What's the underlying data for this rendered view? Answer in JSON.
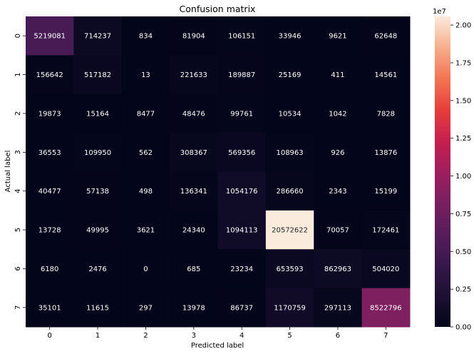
{
  "chart_data": {
    "type": "heatmap",
    "title": "Confusion matrix",
    "xlabel": "Predicted label",
    "ylabel": "Actual label",
    "x_categories": [
      "0",
      "1",
      "2",
      "3",
      "4",
      "5",
      "6",
      "7"
    ],
    "y_categories": [
      "0",
      "1",
      "2",
      "3",
      "4",
      "5",
      "6",
      "7"
    ],
    "values": [
      [
        5219081,
        714237,
        834,
        81904,
        106151,
        33946,
        9621,
        62648
      ],
      [
        156642,
        517182,
        13,
        221633,
        189887,
        25169,
        411,
        14561
      ],
      [
        19873,
        15164,
        8477,
        48476,
        99761,
        10534,
        1042,
        7828
      ],
      [
        36553,
        109950,
        562,
        308367,
        569356,
        108963,
        926,
        13876
      ],
      [
        40477,
        57138,
        498,
        136341,
        1054176,
        286660,
        2343,
        15199
      ],
      [
        13728,
        49995,
        3621,
        24340,
        1094113,
        20572622,
        70057,
        172461
      ],
      [
        6180,
        2476,
        0,
        685,
        23234,
        653593,
        862963,
        504020
      ],
      [
        35101,
        11615,
        297,
        13978,
        86737,
        1170759,
        297113,
        8522796
      ]
    ],
    "colormap": "rocket",
    "colorbar": {
      "range": [
        0,
        20572622
      ],
      "exponent_label": "1e7",
      "ticks": [
        0,
        2500000,
        5000000,
        7500000,
        10000000,
        12500000,
        15000000,
        17500000,
        20000000
      ],
      "tick_labels": [
        "0.00",
        "0.25",
        "0.50",
        "0.75",
        "1.00",
        "1.25",
        "1.50",
        "1.75",
        "2.00"
      ]
    },
    "grid": false
  }
}
